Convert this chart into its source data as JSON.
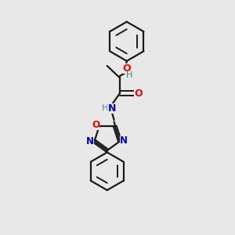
{
  "bg_color": "#e8e8e8",
  "bond_color": "#1a1a1a",
  "atom_colors": {
    "O": "#ff0000",
    "N": "#0000cc",
    "H": "#2a9090"
  },
  "figsize": [
    3.0,
    3.0
  ],
  "dpi": 100,
  "lw": 1.6,
  "lw_inner": 1.4
}
